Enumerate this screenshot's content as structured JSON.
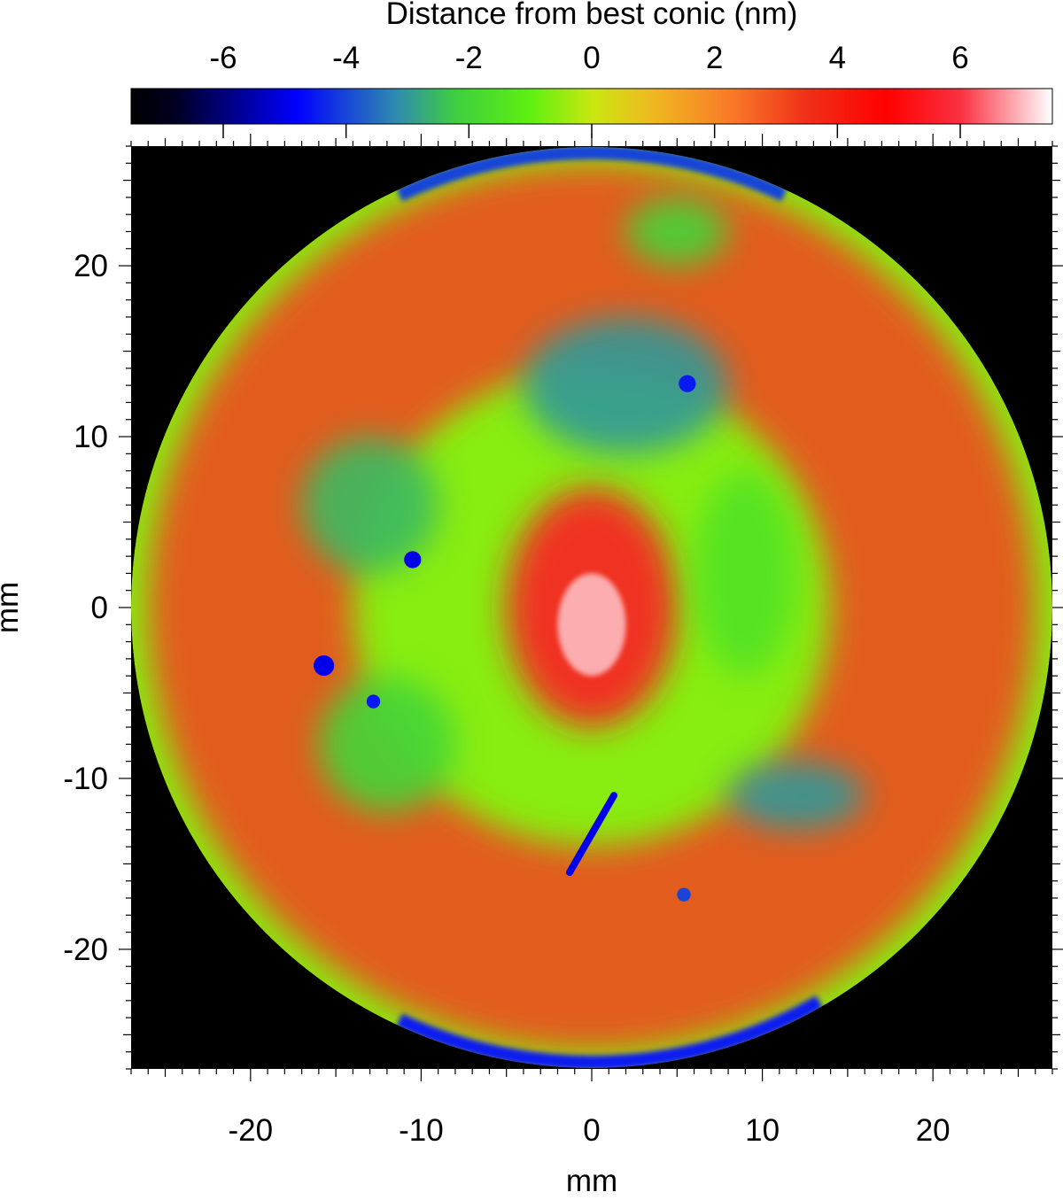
{
  "chart_data": {
    "type": "heatmap",
    "title": "",
    "colorbar": {
      "label": "Distance from best conic (nm)",
      "range": [
        -7.5,
        7.5
      ],
      "ticks": [
        -6,
        -4,
        -2,
        0,
        2,
        4,
        6
      ],
      "tick_labels": [
        "-6",
        "-4",
        "-2",
        "0",
        "2",
        "4",
        "6"
      ],
      "colormap": [
        {
          "value": -7.5,
          "color": "#000000"
        },
        {
          "value": -6.8,
          "color": "#000020"
        },
        {
          "value": -4.8,
          "color": "#0000ff"
        },
        {
          "value": -3.2,
          "color": "#2f8ab0"
        },
        {
          "value": -2.2,
          "color": "#3ecf3e"
        },
        {
          "value": -1.0,
          "color": "#5ef010"
        },
        {
          "value": 0.0,
          "color": "#c8e810"
        },
        {
          "value": 1.0,
          "color": "#f0b820"
        },
        {
          "value": 2.3,
          "color": "#f87828"
        },
        {
          "value": 3.5,
          "color": "#f03018"
        },
        {
          "value": 4.8,
          "color": "#ff0000"
        },
        {
          "value": 6.0,
          "color": "#fa3040"
        },
        {
          "value": 7.5,
          "color": "#ffffff"
        }
      ]
    },
    "xlabel": "mm",
    "ylabel": "mm",
    "xlim": [
      -27,
      27
    ],
    "ylim": [
      -27,
      27
    ],
    "xticks": [
      -20,
      -10,
      0,
      10,
      20
    ],
    "xtick_labels": [
      "-20",
      "-10",
      "0",
      "10",
      "20"
    ],
    "yticks": [
      -20,
      -10,
      0,
      10,
      20
    ],
    "ytick_labels": [
      "-20",
      "-10",
      "0",
      "10",
      "20"
    ],
    "aperture": {
      "shape": "circle",
      "center": [
        0,
        0
      ],
      "radius": 27
    },
    "background_color": "#000000",
    "features": [
      {
        "kind": "outer_ring",
        "r_min": 14,
        "r_max": 26,
        "value": 3.2
      },
      {
        "kind": "blob",
        "x": 0,
        "y": 0,
        "sx": 5,
        "sy": 7,
        "value": 5.5
      },
      {
        "kind": "blob",
        "x": 0,
        "y": -1,
        "sx": 2,
        "sy": 3,
        "value": 7
      },
      {
        "kind": "blob",
        "x": 2,
        "y": 13,
        "sx": 6,
        "sy": 4,
        "value": -3
      },
      {
        "kind": "blob",
        "x": -13,
        "y": 6,
        "sx": 4,
        "sy": 4,
        "value": -2.5
      },
      {
        "kind": "blob",
        "x": -12,
        "y": -8,
        "sx": 4,
        "sy": 4,
        "value": -2
      },
      {
        "kind": "blob",
        "x": 12,
        "y": -11,
        "sx": 4,
        "sy": 2,
        "value": -3
      },
      {
        "kind": "blob",
        "x": 5,
        "y": 22,
        "sx": 3,
        "sy": 2,
        "value": -2
      },
      {
        "kind": "blob",
        "x": 9,
        "y": 2,
        "sx": 3,
        "sy": 6,
        "value": -1.5
      },
      {
        "kind": "spot",
        "x": -10.5,
        "y": 2.8,
        "r": 0.5,
        "value": -5
      },
      {
        "kind": "spot",
        "x": -15.7,
        "y": -3.4,
        "r": 0.6,
        "value": -5
      },
      {
        "kind": "spot",
        "x": -12.8,
        "y": -5.5,
        "r": 0.4,
        "value": -4.5
      },
      {
        "kind": "spot",
        "x": 5.6,
        "y": 13.1,
        "r": 0.5,
        "value": -4.5
      },
      {
        "kind": "spot",
        "x": 5.4,
        "y": -16.8,
        "r": 0.4,
        "value": -4
      },
      {
        "kind": "scratch",
        "x1": 1.3,
        "y1": -11,
        "x2": -1.3,
        "y2": -15.5,
        "value": -5
      },
      {
        "kind": "edge_band",
        "angle_min": 65,
        "angle_max": 115,
        "value": -4
      },
      {
        "kind": "edge_band",
        "angle_min": 245,
        "angle_max": 300,
        "value": -4.5
      }
    ]
  }
}
